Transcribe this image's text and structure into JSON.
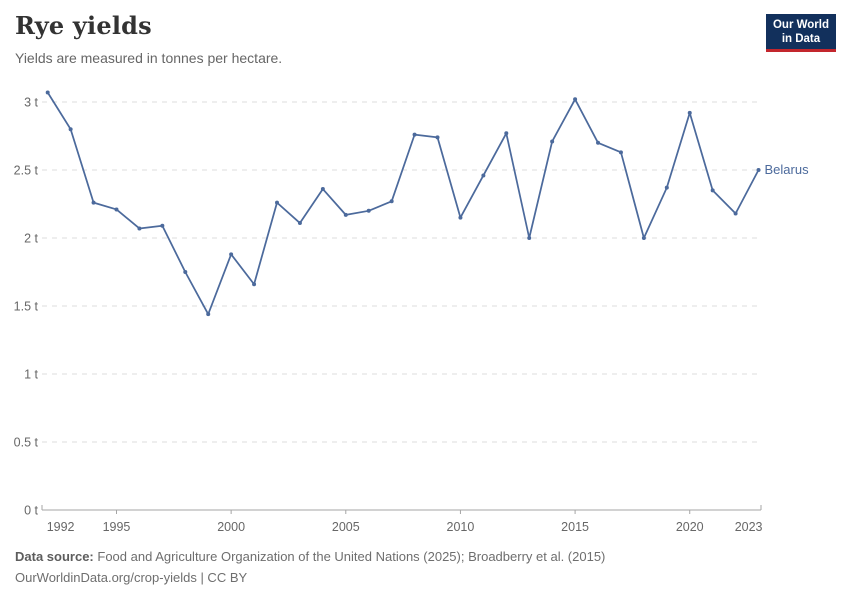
{
  "header": {
    "title": "Rye yields",
    "subtitle": "Yields are measured in tonnes per hectare."
  },
  "logo": {
    "line1": "Our World",
    "line2": "in Data",
    "bg_color": "#12305c",
    "bar_color": "#c3262d",
    "text_color": "#ffffff"
  },
  "chart_data": {
    "type": "line",
    "title": "Rye yields",
    "subtitle": "Yields are measured in tonnes per hectare.",
    "unit": "tonnes per hectare",
    "grid": "horizontal dashed",
    "legend_position": "end-of-line label",
    "xlim": [
      1992,
      2023
    ],
    "ylim": [
      0,
      3.1
    ],
    "x_ticks": [
      {
        "value": 1992,
        "label": "1992"
      },
      {
        "value": 1995,
        "label": "1995"
      },
      {
        "value": 2000,
        "label": "2000"
      },
      {
        "value": 2005,
        "label": "2005"
      },
      {
        "value": 2010,
        "label": "2010"
      },
      {
        "value": 2015,
        "label": "2015"
      },
      {
        "value": 2020,
        "label": "2020"
      },
      {
        "value": 2023,
        "label": "2023"
      }
    ],
    "y_ticks": [
      {
        "value": 0,
        "label": "0 t"
      },
      {
        "value": 0.5,
        "label": "0.5 t"
      },
      {
        "value": 1,
        "label": "1 t"
      },
      {
        "value": 1.5,
        "label": "1.5 t"
      },
      {
        "value": 2,
        "label": "2 t"
      },
      {
        "value": 2.5,
        "label": "2.5 t"
      },
      {
        "value": 3,
        "label": "3 t"
      }
    ],
    "series": [
      {
        "name": "Belarus",
        "color": "#4C6A9C",
        "x": [
          1992,
          1993,
          1994,
          1995,
          1996,
          1997,
          1998,
          1999,
          2000,
          2001,
          2002,
          2003,
          2004,
          2005,
          2006,
          2007,
          2008,
          2009,
          2010,
          2011,
          2012,
          2013,
          2014,
          2015,
          2016,
          2017,
          2018,
          2019,
          2020,
          2021,
          2022,
          2023
        ],
        "values": [
          3.07,
          2.8,
          2.26,
          2.21,
          2.07,
          2.09,
          1.75,
          1.44,
          1.88,
          1.66,
          2.26,
          2.11,
          2.36,
          2.17,
          2.2,
          2.27,
          2.76,
          2.74,
          2.15,
          2.46,
          2.77,
          2.0,
          2.71,
          3.02,
          2.7,
          2.63,
          2.0,
          2.37,
          2.92,
          2.35,
          2.18,
          2.5
        ]
      }
    ]
  },
  "footer": {
    "data_source_label": "Data source:",
    "data_source": "Food and Agriculture Organization of the United Nations (2025); Broadberry et al. (2015)",
    "citation": "OurWorldinData.org/crop-yields | CC BY"
  }
}
